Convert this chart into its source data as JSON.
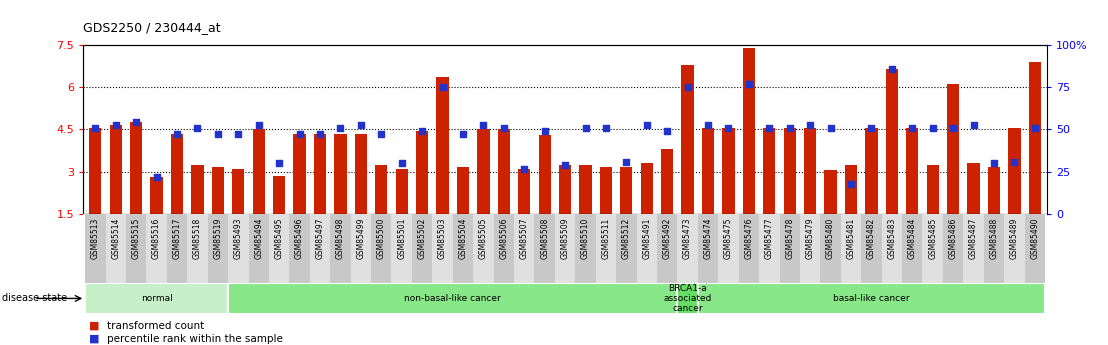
{
  "title": "GDS2250 / 230444_at",
  "samples": [
    "GSM85513",
    "GSM85514",
    "GSM85515",
    "GSM85516",
    "GSM85517",
    "GSM85518",
    "GSM85519",
    "GSM85493",
    "GSM85494",
    "GSM85495",
    "GSM85496",
    "GSM85497",
    "GSM85498",
    "GSM85499",
    "GSM85500",
    "GSM85501",
    "GSM85502",
    "GSM85503",
    "GSM85504",
    "GSM85505",
    "GSM85506",
    "GSM85507",
    "GSM85508",
    "GSM85509",
    "GSM85510",
    "GSM85511",
    "GSM85512",
    "GSM85491",
    "GSM85492",
    "GSM85473",
    "GSM85474",
    "GSM85475",
    "GSM85476",
    "GSM85477",
    "GSM85478",
    "GSM85479",
    "GSM85480",
    "GSM85481",
    "GSM85482",
    "GSM85483",
    "GSM85484",
    "GSM85485",
    "GSM85486",
    "GSM85487",
    "GSM85488",
    "GSM85489",
    "GSM85490"
  ],
  "bar_values": [
    4.55,
    4.65,
    4.75,
    2.8,
    4.35,
    3.25,
    3.15,
    3.1,
    4.5,
    2.85,
    4.35,
    4.35,
    4.35,
    4.35,
    3.25,
    3.1,
    4.45,
    6.35,
    3.15,
    4.5,
    4.5,
    3.1,
    4.3,
    3.25,
    3.25,
    3.15,
    3.15,
    3.3,
    3.8,
    6.8,
    4.55,
    4.55,
    7.4,
    4.55,
    4.55,
    4.55,
    3.05,
    3.25,
    4.55,
    6.65,
    4.55,
    3.25,
    6.1,
    3.3,
    3.15,
    4.55,
    6.9
  ],
  "dot_values": [
    4.55,
    4.65,
    4.75,
    2.8,
    4.35,
    4.55,
    4.35,
    4.35,
    4.65,
    3.3,
    4.35,
    4.35,
    4.55,
    4.65,
    4.35,
    3.3,
    4.45,
    6.0,
    4.35,
    4.65,
    4.55,
    3.1,
    4.45,
    3.25,
    4.55,
    4.55,
    3.35,
    4.65,
    4.45,
    6.0,
    4.65,
    4.55,
    6.1,
    4.55,
    4.55,
    4.65,
    4.55,
    2.55,
    4.55,
    6.65,
    4.55,
    4.55,
    4.55,
    4.65,
    3.3,
    3.35,
    4.55
  ],
  "ylim_left": [
    1.5,
    7.5
  ],
  "ylim_right": [
    0,
    100
  ],
  "yticks_left": [
    1.5,
    3.0,
    4.5,
    6.0,
    7.5
  ],
  "ytick_labels_left": [
    "1.5",
    "3",
    "4.5",
    "6",
    "7.5"
  ],
  "yticks_right": [
    0,
    25,
    50,
    75,
    100
  ],
  "ytick_labels_right": [
    "0",
    "25",
    "50",
    "75",
    "100%"
  ],
  "hlines": [
    3.0,
    4.5,
    6.0
  ],
  "bar_color": "#cc2200",
  "dot_color": "#2233cc",
  "bar_bottom": 1.5,
  "groups": [
    {
      "label": "normal",
      "start": 0,
      "end": 7,
      "color": "#c8f0c8"
    },
    {
      "label": "non-basal-like cancer",
      "start": 7,
      "end": 29,
      "color": "#88e888"
    },
    {
      "label": "BRCA1-a\nassociated\ncancer",
      "start": 29,
      "end": 30,
      "color": "#66dd66"
    },
    {
      "label": "basal-like cancer",
      "start": 30,
      "end": 47,
      "color": "#88e888"
    }
  ],
  "disease_state_label": "disease state",
  "legend_items": [
    {
      "label": "transformed count",
      "color": "#cc2200"
    },
    {
      "label": "percentile rank within the sample",
      "color": "#2233cc"
    }
  ]
}
